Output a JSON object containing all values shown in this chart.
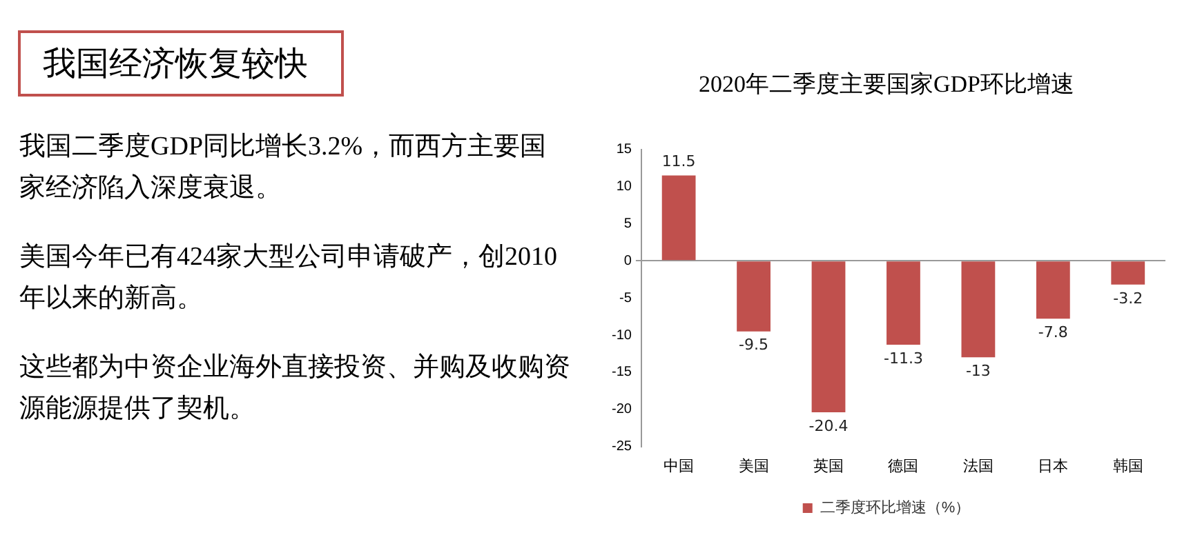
{
  "chart_data": [
    {
      "type": "other",
      "title": "我国经济恢复较快",
      "annotations": [
        "我国二季度GDP同比增长3.2%，而西方主要国家经济陷入深度衰退。",
        "美国今年已有424家大型公司申请破产，创2010年以来的新高。",
        "这些都为中资企业海外直接投资、并购及收购资源能源提供了契机。"
      ]
    },
    {
      "type": "bar",
      "title": "2020年二季度主要国家GDP环比增速",
      "categories": [
        "中国",
        "美国",
        "英国",
        "德国",
        "法国",
        "日本",
        "韩国"
      ],
      "series": [
        {
          "name": "二季度环比增速（%）",
          "color": "#c0504d",
          "values": [
            11.5,
            -9.5,
            -20.4,
            -11.3,
            -13,
            -7.8,
            -3.2
          ]
        }
      ],
      "ylim": [
        -25,
        15
      ],
      "yticks": [
        -25,
        -20,
        -15,
        -10,
        -5,
        0,
        5,
        10,
        15
      ],
      "data_labels": true,
      "legend": "bottom"
    }
  ]
}
